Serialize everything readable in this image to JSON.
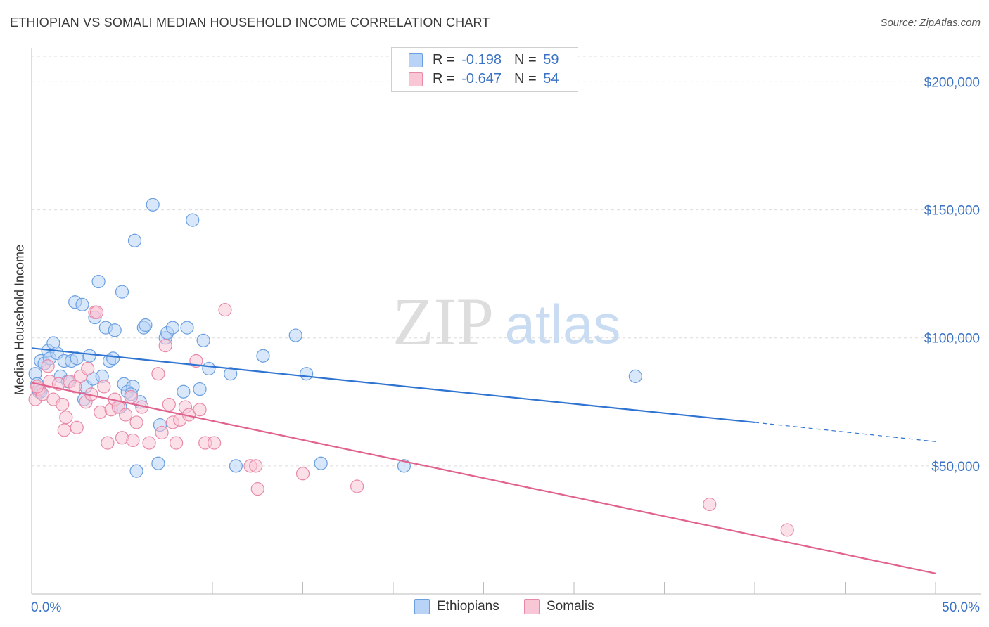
{
  "title": "ETHIOPIAN VS SOMALI MEDIAN HOUSEHOLD INCOME CORRELATION CHART",
  "source": "Source: ZipAtlas.com",
  "watermark": {
    "zip": "ZIP",
    "atlas": "atlas"
  },
  "legend": {
    "rows": [
      {
        "r_label": "R =",
        "r_value": "-0.198",
        "n_label": "N =",
        "n_value": "59",
        "fill": "#b8d3f5",
        "stroke": "#6a9fe0"
      },
      {
        "r_label": "R =",
        "r_value": "-0.647",
        "n_label": "N =",
        "n_value": "54",
        "fill": "#f9c6d6",
        "stroke": "#e889a8"
      }
    ]
  },
  "bottom_legend": [
    {
      "label": "Ethiopians",
      "fill": "#b8d3f5",
      "stroke": "#6a9fe0"
    },
    {
      "label": "Somalis",
      "fill": "#f9c6d6",
      "stroke": "#e889a8"
    }
  ],
  "chart_data": {
    "type": "scatter",
    "title": "ETHIOPIAN VS SOMALI MEDIAN HOUSEHOLD INCOME CORRELATION CHART",
    "xlabel": "",
    "ylabel": "Median Household Income",
    "xlim": [
      0,
      50
    ],
    "ylim": [
      0,
      210000
    ],
    "x_tick_labels": [
      "0.0%",
      "50.0%"
    ],
    "y_ticks": [
      50000,
      100000,
      150000,
      200000
    ],
    "y_tick_labels": [
      "$50,000",
      "$100,000",
      "$150,000",
      "$200,000"
    ],
    "grid": true,
    "series": [
      {
        "name": "Ethiopians",
        "color": "#6a9fe0",
        "fill": "#b8d3f5",
        "trend": {
          "x0": 0,
          "y0": 96000,
          "x1": 40,
          "y1": 67000,
          "dash_to_x": 50,
          "dash_to_y": 59500,
          "color": "#2f74d0"
        },
        "points": [
          [
            0.2,
            86000
          ],
          [
            0.3,
            82000
          ],
          [
            0.4,
            79000
          ],
          [
            0.5,
            91000
          ],
          [
            0.7,
            90000
          ],
          [
            0.9,
            95000
          ],
          [
            1.0,
            92000
          ],
          [
            1.2,
            98000
          ],
          [
            1.4,
            94000
          ],
          [
            1.6,
            85000
          ],
          [
            1.8,
            91000
          ],
          [
            2.0,
            83000
          ],
          [
            2.2,
            91000
          ],
          [
            2.4,
            114000
          ],
          [
            2.5,
            92000
          ],
          [
            2.8,
            113000
          ],
          [
            3.0,
            81000
          ],
          [
            3.2,
            93000
          ],
          [
            3.4,
            84000
          ],
          [
            3.5,
            108000
          ],
          [
            3.7,
            122000
          ],
          [
            3.9,
            85000
          ],
          [
            4.1,
            104000
          ],
          [
            4.3,
            91000
          ],
          [
            4.5,
            92000
          ],
          [
            4.6,
            103000
          ],
          [
            4.9,
            73000
          ],
          [
            5.0,
            118000
          ],
          [
            5.1,
            82000
          ],
          [
            5.3,
            79000
          ],
          [
            5.6,
            81000
          ],
          [
            5.7,
            138000
          ],
          [
            5.8,
            48000
          ],
          [
            6.0,
            75000
          ],
          [
            6.2,
            104000
          ],
          [
            6.3,
            105000
          ],
          [
            6.7,
            152000
          ],
          [
            7.0,
            51000
          ],
          [
            7.1,
            66000
          ],
          [
            7.4,
            100000
          ],
          [
            7.5,
            102000
          ],
          [
            7.8,
            104000
          ],
          [
            8.4,
            79000
          ],
          [
            8.6,
            104000
          ],
          [
            8.9,
            146000
          ],
          [
            9.3,
            80000
          ],
          [
            9.5,
            99000
          ],
          [
            9.8,
            88000
          ],
          [
            11.0,
            86000
          ],
          [
            11.3,
            50000
          ],
          [
            12.8,
            93000
          ],
          [
            14.6,
            101000
          ],
          [
            15.2,
            86000
          ],
          [
            16.0,
            51000
          ],
          [
            20.6,
            50000
          ],
          [
            33.4,
            85000
          ],
          [
            2.9,
            76000
          ],
          [
            5.5,
            78000
          ],
          [
            0.5,
            79000
          ]
        ]
      },
      {
        "name": "Somalis",
        "color": "#e889a8",
        "fill": "#f9c6d6",
        "trend": {
          "x0": 0,
          "y0": 82500,
          "x1": 50,
          "y1": 8000,
          "color": "#e0628d"
        },
        "points": [
          [
            0.2,
            76000
          ],
          [
            0.4,
            80000
          ],
          [
            0.6,
            78000
          ],
          [
            0.9,
            89000
          ],
          [
            1.0,
            83000
          ],
          [
            1.2,
            76000
          ],
          [
            1.5,
            82000
          ],
          [
            1.7,
            74000
          ],
          [
            1.8,
            64000
          ],
          [
            1.9,
            69000
          ],
          [
            2.1,
            83000
          ],
          [
            2.4,
            81000
          ],
          [
            2.5,
            65000
          ],
          [
            2.7,
            85000
          ],
          [
            3.0,
            75000
          ],
          [
            3.1,
            88000
          ],
          [
            3.3,
            78000
          ],
          [
            3.5,
            110000
          ],
          [
            3.6,
            110000
          ],
          [
            3.8,
            71000
          ],
          [
            4.0,
            81000
          ],
          [
            4.2,
            59000
          ],
          [
            4.4,
            72000
          ],
          [
            4.6,
            76000
          ],
          [
            4.8,
            73000
          ],
          [
            5.0,
            61000
          ],
          [
            5.2,
            70000
          ],
          [
            5.5,
            77000
          ],
          [
            5.6,
            60000
          ],
          [
            5.8,
            67000
          ],
          [
            6.1,
            73000
          ],
          [
            6.5,
            59000
          ],
          [
            7.0,
            86000
          ],
          [
            7.2,
            63000
          ],
          [
            7.4,
            97000
          ],
          [
            7.6,
            74000
          ],
          [
            7.8,
            67000
          ],
          [
            8.0,
            59000
          ],
          [
            8.2,
            68000
          ],
          [
            8.5,
            73000
          ],
          [
            8.7,
            70000
          ],
          [
            9.1,
            91000
          ],
          [
            9.3,
            72000
          ],
          [
            9.6,
            59000
          ],
          [
            10.1,
            59000
          ],
          [
            10.7,
            111000
          ],
          [
            12.1,
            50000
          ],
          [
            12.4,
            50000
          ],
          [
            12.5,
            41000
          ],
          [
            15.0,
            47000
          ],
          [
            18.0,
            42000
          ],
          [
            37.5,
            35000
          ],
          [
            41.8,
            25000
          ],
          [
            0.3,
            81000
          ]
        ]
      }
    ]
  }
}
